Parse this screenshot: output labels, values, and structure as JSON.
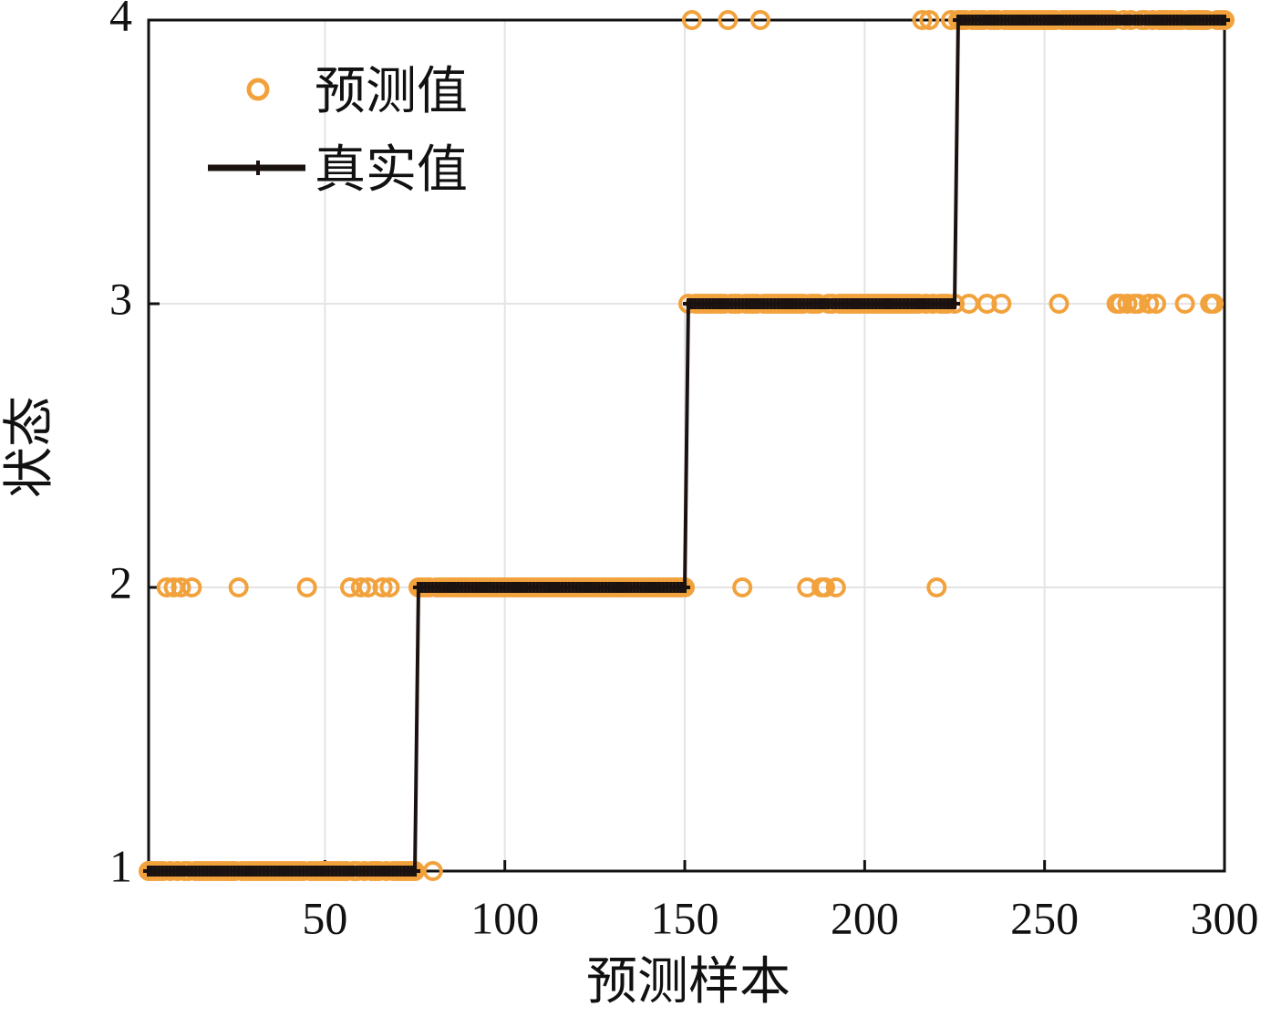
{
  "chart_data": {
    "type": "scatter-line",
    "xlabel": "预测样本",
    "ylabel": "状态",
    "xlim": [
      1,
      300
    ],
    "ylim": [
      1,
      4
    ],
    "xticks": [
      50,
      100,
      150,
      200,
      250,
      300
    ],
    "yticks": [
      1,
      2,
      3,
      4
    ],
    "grid": true,
    "legend": "upper left",
    "x": [
      1,
      2,
      3,
      4,
      5,
      6,
      7,
      8,
      9,
      10,
      11,
      12,
      13,
      14,
      15,
      16,
      17,
      18,
      19,
      20,
      21,
      22,
      23,
      24,
      25,
      26,
      27,
      28,
      29,
      30,
      31,
      32,
      33,
      34,
      35,
      36,
      37,
      38,
      39,
      40,
      41,
      42,
      43,
      44,
      45,
      46,
      47,
      48,
      49,
      50,
      51,
      52,
      53,
      54,
      55,
      56,
      57,
      58,
      59,
      60,
      61,
      62,
      63,
      64,
      65,
      66,
      67,
      68,
      69,
      70,
      71,
      72,
      73,
      74,
      75,
      76,
      77,
      78,
      79,
      80,
      81,
      82,
      83,
      84,
      85,
      86,
      87,
      88,
      89,
      90,
      91,
      92,
      93,
      94,
      95,
      96,
      97,
      98,
      99,
      100,
      101,
      102,
      103,
      104,
      105,
      106,
      107,
      108,
      109,
      110,
      111,
      112,
      113,
      114,
      115,
      116,
      117,
      118,
      119,
      120,
      121,
      122,
      123,
      124,
      125,
      126,
      127,
      128,
      129,
      130,
      131,
      132,
      133,
      134,
      135,
      136,
      137,
      138,
      139,
      140,
      141,
      142,
      143,
      144,
      145,
      146,
      147,
      148,
      149,
      150,
      151,
      152,
      153,
      154,
      155,
      156,
      157,
      158,
      159,
      160,
      161,
      162,
      163,
      164,
      165,
      166,
      167,
      168,
      169,
      170,
      171,
      172,
      173,
      174,
      175,
      176,
      177,
      178,
      179,
      180,
      181,
      182,
      183,
      184,
      185,
      186,
      187,
      188,
      189,
      190,
      191,
      192,
      193,
      194,
      195,
      196,
      197,
      198,
      199,
      200,
      201,
      202,
      203,
      204,
      205,
      206,
      207,
      208,
      209,
      210,
      211,
      212,
      213,
      214,
      215,
      216,
      217,
      218,
      219,
      220,
      221,
      222,
      223,
      224,
      225,
      226,
      227,
      228,
      229,
      230,
      231,
      232,
      233,
      234,
      235,
      236,
      237,
      238,
      239,
      240,
      241,
      242,
      243,
      244,
      245,
      246,
      247,
      248,
      249,
      250,
      251,
      252,
      253,
      254,
      255,
      256,
      257,
      258,
      259,
      260,
      261,
      262,
      263,
      264,
      265,
      266,
      267,
      268,
      269,
      270,
      271,
      272,
      273,
      274,
      275,
      276,
      277,
      278,
      279,
      280,
      281,
      282,
      283,
      284,
      285,
      286,
      287,
      288,
      289,
      290,
      291,
      292,
      293,
      294,
      295,
      296,
      297,
      298,
      299,
      300
    ],
    "series": [
      {
        "name": "预测值",
        "color": "#f2a23c",
        "style": "marker",
        "values": [
          1,
          1,
          1,
          1,
          1,
          2,
          1,
          2,
          1,
          2,
          1,
          1,
          2,
          1,
          1,
          1,
          1,
          1,
          1,
          1,
          1,
          1,
          1,
          1,
          1,
          2,
          1,
          1,
          1,
          1,
          1,
          1,
          1,
          1,
          1,
          1,
          1,
          1,
          1,
          1,
          1,
          1,
          1,
          1,
          2,
          1,
          1,
          1,
          1,
          1,
          1,
          1,
          1,
          1,
          1,
          1,
          2,
          1,
          1,
          2,
          1,
          2,
          1,
          1,
          1,
          2,
          1,
          2,
          1,
          1,
          1,
          1,
          1,
          1,
          1,
          2,
          2,
          2,
          2,
          1,
          2,
          2,
          2,
          2,
          2,
          2,
          2,
          2,
          2,
          2,
          2,
          2,
          2,
          2,
          2,
          2,
          2,
          2,
          2,
          2,
          2,
          2,
          2,
          2,
          2,
          2,
          2,
          2,
          2,
          2,
          2,
          2,
          2,
          2,
          2,
          2,
          2,
          2,
          2,
          2,
          2,
          2,
          2,
          2,
          2,
          2,
          2,
          2,
          2,
          2,
          2,
          2,
          2,
          2,
          2,
          2,
          2,
          2,
          2,
          2,
          2,
          2,
          2,
          2,
          2,
          2,
          2,
          2,
          2,
          2,
          3,
          4,
          3,
          3,
          3,
          3,
          3,
          3,
          3,
          3,
          3,
          4,
          3,
          3,
          3,
          2,
          3,
          3,
          3,
          3,
          4,
          3,
          3,
          3,
          3,
          3,
          3,
          3,
          3,
          3,
          3,
          3,
          3,
          2,
          3,
          3,
          3,
          2,
          2,
          3,
          3,
          2,
          3,
          3,
          3,
          3,
          3,
          3,
          3,
          3,
          3,
          3,
          3,
          3,
          3,
          3,
          3,
          3,
          3,
          3,
          3,
          3,
          3,
          3,
          3,
          4,
          3,
          4,
          3,
          2,
          3,
          3,
          3,
          4,
          3,
          4,
          4,
          4,
          3,
          4,
          4,
          4,
          4,
          3,
          4,
          4,
          4,
          3,
          4,
          4,
          4,
          4,
          4,
          4,
          4,
          4,
          4,
          4,
          4,
          4,
          4,
          4,
          4,
          3,
          4,
          4,
          4,
          4,
          4,
          4,
          4,
          4,
          4,
          4,
          4,
          4,
          4,
          4,
          4,
          3,
          3,
          4,
          3,
          4,
          3,
          3,
          4,
          4,
          3,
          4,
          3,
          4,
          4,
          4,
          4,
          4,
          4,
          4,
          3,
          4,
          4,
          4,
          4,
          4,
          4,
          3,
          3,
          4,
          4,
          4
        ]
      },
      {
        "name": "真实值",
        "color": "#1a1210",
        "style": "line",
        "values": [
          1,
          1,
          1,
          1,
          1,
          1,
          1,
          1,
          1,
          1,
          1,
          1,
          1,
          1,
          1,
          1,
          1,
          1,
          1,
          1,
          1,
          1,
          1,
          1,
          1,
          1,
          1,
          1,
          1,
          1,
          1,
          1,
          1,
          1,
          1,
          1,
          1,
          1,
          1,
          1,
          1,
          1,
          1,
          1,
          1,
          1,
          1,
          1,
          1,
          1,
          1,
          1,
          1,
          1,
          1,
          1,
          1,
          1,
          1,
          1,
          1,
          1,
          1,
          1,
          1,
          1,
          1,
          1,
          1,
          1,
          1,
          1,
          1,
          1,
          1,
          2,
          2,
          2,
          2,
          2,
          2,
          2,
          2,
          2,
          2,
          2,
          2,
          2,
          2,
          2,
          2,
          2,
          2,
          2,
          2,
          2,
          2,
          2,
          2,
          2,
          2,
          2,
          2,
          2,
          2,
          2,
          2,
          2,
          2,
          2,
          2,
          2,
          2,
          2,
          2,
          2,
          2,
          2,
          2,
          2,
          2,
          2,
          2,
          2,
          2,
          2,
          2,
          2,
          2,
          2,
          2,
          2,
          2,
          2,
          2,
          2,
          2,
          2,
          2,
          2,
          2,
          2,
          2,
          2,
          2,
          2,
          2,
          2,
          2,
          2,
          3,
          3,
          3,
          3,
          3,
          3,
          3,
          3,
          3,
          3,
          3,
          3,
          3,
          3,
          3,
          3,
          3,
          3,
          3,
          3,
          3,
          3,
          3,
          3,
          3,
          3,
          3,
          3,
          3,
          3,
          3,
          3,
          3,
          3,
          3,
          3,
          3,
          3,
          3,
          3,
          3,
          3,
          3,
          3,
          3,
          3,
          3,
          3,
          3,
          3,
          3,
          3,
          3,
          3,
          3,
          3,
          3,
          3,
          3,
          3,
          3,
          3,
          3,
          3,
          3,
          3,
          3,
          3,
          3,
          3,
          3,
          3,
          3,
          3,
          3,
          4,
          4,
          4,
          4,
          4,
          4,
          4,
          4,
          4,
          4,
          4,
          4,
          4,
          4,
          4,
          4,
          4,
          4,
          4,
          4,
          4,
          4,
          4,
          4,
          4,
          4,
          4,
          4,
          4,
          4,
          4,
          4,
          4,
          4,
          4,
          4,
          4,
          4,
          4,
          4,
          4,
          4,
          4,
          4,
          4,
          4,
          4,
          4,
          4,
          4,
          4,
          4,
          4,
          4,
          4,
          4,
          4,
          4,
          4,
          4,
          4,
          4,
          4,
          4,
          4,
          4,
          4,
          4,
          4,
          4,
          4,
          4,
          4,
          4,
          4
        ]
      }
    ]
  }
}
